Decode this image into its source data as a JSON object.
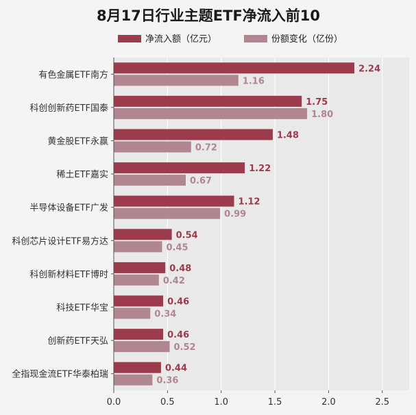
{
  "chart_data": {
    "type": "bar",
    "orientation": "horizontal",
    "title": "8月17日行业主题ETF净流入前10",
    "categories": [
      "有色金属ETF南方",
      "科创创新药ETF国泰",
      "黄金股ETF永赢",
      "稀土ETF嘉实",
      "半导体设备ETF广发",
      "科创芯片设计ETF易方达",
      "科创新材料ETF博时",
      "科技ETF华宝",
      "创新药ETF天弘",
      "全指现金流ETF华泰柏瑞"
    ],
    "series": [
      {
        "name": "净流入额（亿元）",
        "color": "#9c3b4c",
        "values": [
          2.24,
          1.75,
          1.48,
          1.22,
          1.12,
          0.54,
          0.48,
          0.46,
          0.46,
          0.44
        ],
        "labels": [
          "2.24",
          "1.75",
          "1.48",
          "1.22",
          "1.12",
          "0.54",
          "0.48",
          "0.46",
          "0.46",
          "0.44"
        ]
      },
      {
        "name": "份额变化（亿份）",
        "color": "#b08690",
        "values": [
          1.16,
          1.8,
          0.72,
          0.67,
          0.99,
          0.45,
          0.42,
          0.34,
          0.52,
          0.36
        ],
        "labels": [
          "1.16",
          "1.80",
          "0.72",
          "0.67",
          "0.99",
          "0.45",
          "0.42",
          "0.34",
          "0.52",
          "0.36"
        ]
      }
    ],
    "xlim": [
      0,
      2.75
    ],
    "xticks": [
      "0.0",
      "0.5",
      "1.0",
      "1.5",
      "2.0",
      "2.5"
    ],
    "xtick_values": [
      0,
      0.5,
      1.0,
      1.5,
      2.0,
      2.5
    ],
    "xlabel": "",
    "ylabel": "",
    "grid": "vertical",
    "legend_position": "top"
  }
}
